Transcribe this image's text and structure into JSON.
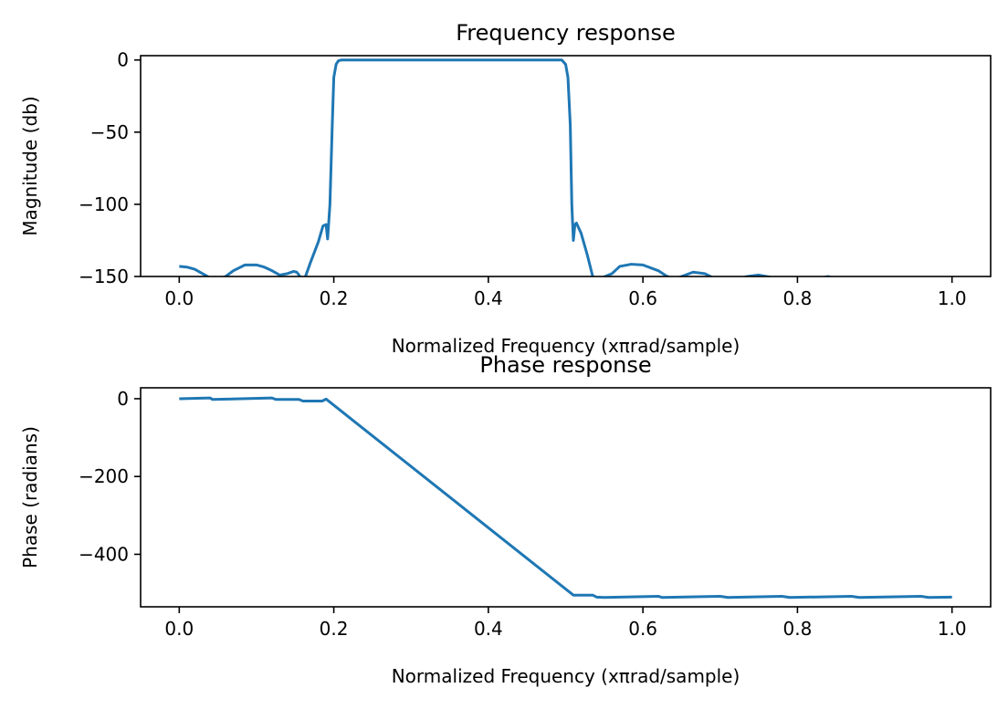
{
  "chart_data": [
    {
      "type": "line",
      "title": "Frequency response",
      "xlabel": "Normalized Frequency (xπrad/sample)",
      "ylabel": "Magnitude (db)",
      "xlim": [
        -0.05,
        1.05
      ],
      "ylim": [
        -150,
        3
      ],
      "xticks": [
        0.0,
        0.2,
        0.4,
        0.6,
        0.8,
        1.0
      ],
      "xtick_labels": [
        "0.0",
        "0.2",
        "0.4",
        "0.6",
        "0.8",
        "1.0"
      ],
      "yticks": [
        0,
        -50,
        -100,
        -150
      ],
      "ytick_labels": [
        "0",
        "−50",
        "−100",
        "−150"
      ],
      "grid": false,
      "series": [
        {
          "color": "#1f77b4",
          "x": [
            0.0,
            0.01,
            0.02,
            0.03,
            0.04,
            0.05,
            0.06,
            0.07,
            0.085,
            0.1,
            0.11,
            0.12,
            0.13,
            0.14,
            0.148,
            0.152,
            0.155,
            0.158,
            0.162,
            0.17,
            0.18,
            0.186,
            0.19,
            0.192,
            0.195,
            0.198,
            0.2,
            0.203,
            0.206,
            0.21,
            0.25,
            0.3,
            0.35,
            0.4,
            0.45,
            0.49,
            0.495,
            0.5,
            0.503,
            0.506,
            0.508,
            0.51,
            0.512,
            0.514,
            0.52,
            0.528,
            0.536,
            0.542,
            0.56,
            0.57,
            0.585,
            0.6,
            0.62,
            0.63,
            0.64,
            0.65,
            0.665,
            0.68,
            0.695,
            0.72,
            0.735,
            0.75,
            0.77,
            0.78,
            0.82,
            0.84,
            0.85
          ],
          "y": [
            -143,
            -143.5,
            -145,
            -148,
            -151,
            -152,
            -150,
            -146,
            -142,
            -142,
            -143.5,
            -146,
            -149,
            -148,
            -146.5,
            -147,
            -149,
            -152,
            -152,
            -140,
            -126,
            -115,
            -114,
            -124,
            -100,
            -45,
            -12,
            -3,
            -0.5,
            0,
            0,
            0,
            0,
            0,
            0,
            0,
            0,
            -3,
            -12,
            -45,
            -100,
            -125,
            -114,
            -113,
            -120,
            -135,
            -152,
            -152,
            -148,
            -143,
            -141.5,
            -142,
            -146,
            -149.5,
            -152,
            -150,
            -147,
            -148,
            -152,
            -152,
            -150,
            -149,
            -151,
            -152,
            -152,
            -150,
            -152
          ]
        }
      ]
    },
    {
      "type": "line",
      "title": "Phase response",
      "xlabel": "Normalized Frequency (xπrad/sample)",
      "ylabel": "Phase (radians)",
      "xlim": [
        -0.05,
        1.05
      ],
      "ylim": [
        -535,
        28
      ],
      "xticks": [
        0.0,
        0.2,
        0.4,
        0.6,
        0.8,
        1.0
      ],
      "xtick_labels": [
        "0.0",
        "0.2",
        "0.4",
        "0.6",
        "0.8",
        "1.0"
      ],
      "yticks": [
        0,
        -200,
        -400
      ],
      "ytick_labels": [
        "0",
        "−200",
        "−400"
      ],
      "grid": false,
      "series": [
        {
          "color": "#1f77b4",
          "x": [
            0.0,
            0.04,
            0.043,
            0.12,
            0.125,
            0.155,
            0.16,
            0.185,
            0.19,
            0.51,
            0.535,
            0.54,
            0.55,
            0.62,
            0.625,
            0.7,
            0.71,
            0.78,
            0.79,
            0.87,
            0.88,
            0.96,
            0.97,
            1.0
          ],
          "y": [
            0,
            2,
            -2,
            2,
            -2,
            -2,
            -6,
            -6,
            -1,
            -505,
            -505,
            -510,
            -511,
            -508,
            -511,
            -508,
            -511,
            -508,
            -511,
            -508,
            -511,
            -508,
            -511,
            -510
          ]
        }
      ]
    }
  ]
}
